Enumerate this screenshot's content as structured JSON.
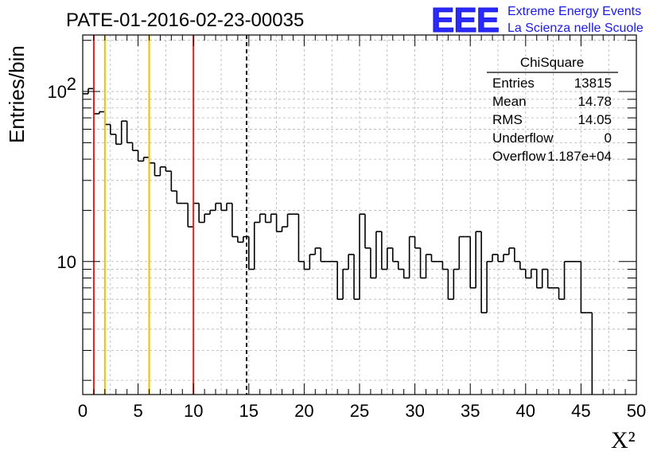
{
  "title": "PATE-01-2016-02-23-00035",
  "brand": {
    "logo": "EEE",
    "line1": "Extreme Energy Events",
    "line2": "La Scienza nelle Scuole",
    "color": "#1a1aee"
  },
  "stats_box": {
    "title": "ChiSquare",
    "rows": [
      {
        "label": "Entries",
        "value": "13815"
      },
      {
        "label": "Mean",
        "value": "14.78"
      },
      {
        "label": "RMS",
        "value": "14.05"
      },
      {
        "label": "Underflow",
        "value": "0"
      },
      {
        "label": "Overflow",
        "value": "1.187e+04"
      }
    ]
  },
  "chart_data": {
    "type": "histogram",
    "xlabel": "X²",
    "ylabel": "Entries/bin",
    "xlim": [
      0,
      50
    ],
    "ylim": [
      1.65,
      215
    ],
    "yscale": "log",
    "bin_width": 0.5,
    "x_ticks": [
      "0",
      "5",
      "10",
      "15",
      "20",
      "25",
      "30",
      "35",
      "40",
      "45",
      "50"
    ],
    "y_ticks": [
      {
        "value": 10,
        "label": "10"
      },
      {
        "value": 100,
        "label": "10",
        "exponent": "2"
      }
    ],
    "grid": true,
    "values": [
      97,
      104,
      74,
      76,
      64,
      56,
      49,
      67,
      50,
      45,
      39,
      41,
      38,
      32,
      36,
      34,
      26,
      22,
      22,
      16,
      22,
      17,
      19,
      20,
      22,
      20,
      22,
      14,
      13,
      14,
      9,
      17,
      19,
      17,
      19,
      15,
      16,
      19,
      19,
      10,
      9,
      11,
      12,
      10,
      10,
      10,
      6,
      9,
      11,
      6,
      19,
      12,
      8,
      15,
      9,
      12,
      10,
      9,
      8,
      14,
      12,
      8,
      11,
      10,
      10,
      9,
      6,
      9,
      14,
      14,
      7,
      15,
      5,
      10,
      11,
      10,
      11,
      12,
      10,
      9,
      8,
      9,
      7,
      9,
      7,
      7,
      6,
      10,
      10,
      10,
      5,
      5
    ],
    "vertical_lines": [
      {
        "x": 1,
        "color": "#e02020",
        "style": "solid"
      },
      {
        "x": 2,
        "color": "#f0c000",
        "style": "solid"
      },
      {
        "x": 6,
        "color": "#f0c000",
        "style": "solid"
      },
      {
        "x": 10,
        "color": "#e02020",
        "style": "solid"
      },
      {
        "x": 14.8,
        "color": "#000000",
        "style": "dashed"
      }
    ]
  }
}
